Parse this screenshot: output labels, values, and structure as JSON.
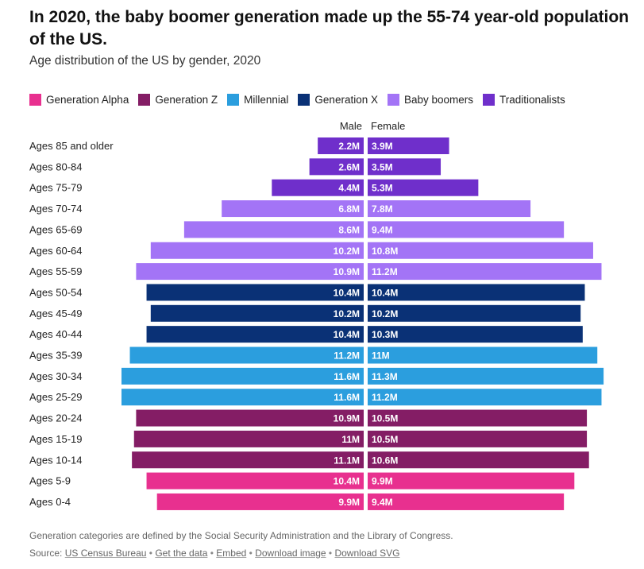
{
  "title": "In 2020, the baby boomer generation made up the 55-74 year-old population of the US.",
  "subtitle": "Age distribution of the US by gender, 2020",
  "legend": [
    {
      "label": "Generation Alpha",
      "color": "#e8308f"
    },
    {
      "label": "Generation Z",
      "color": "#841d65"
    },
    {
      "label": "Millennial",
      "color": "#2b9ede"
    },
    {
      "label": "Generation X",
      "color": "#0a3176"
    },
    {
      "label": "Baby boomers",
      "color": "#a374f6"
    },
    {
      "label": "Traditionalists",
      "color": "#6f2fcb"
    }
  ],
  "footnote": "Generation categories are defined by the Social Security Administration and the Library of Congress.",
  "source": {
    "prefix": "Source:",
    "links": [
      "US Census Bureau",
      "Get the data",
      "Embed",
      "Download image",
      "Download SVG"
    ]
  },
  "chart_data": {
    "type": "bar",
    "orientation": "horizontal-population-pyramid",
    "title": "In 2020, the baby boomer generation made up the 55-74 year-old population of the US.",
    "subtitle": "Age distribution of the US by gender, 2020",
    "left_label": "Male",
    "right_label": "Female",
    "unit_suffix": "M",
    "categories": [
      "Ages 85 and older",
      "Ages 80-84",
      "Ages 75-79",
      "Ages 70-74",
      "Ages 65-69",
      "Ages 60-64",
      "Ages 55-59",
      "Ages 50-54",
      "Ages 45-49",
      "Ages 40-44",
      "Ages 35-39",
      "Ages 30-34",
      "Ages 25-29",
      "Ages 20-24",
      "Ages 15-19",
      "Ages 10-14",
      "Ages 5-9",
      "Ages 0-4"
    ],
    "generation": [
      "Traditionalists",
      "Traditionalists",
      "Traditionalists",
      "Baby boomers",
      "Baby boomers",
      "Baby boomers",
      "Baby boomers",
      "Generation X",
      "Generation X",
      "Generation X",
      "Millennial",
      "Millennial",
      "Millennial",
      "Generation Z",
      "Generation Z",
      "Generation Z",
      "Generation Alpha",
      "Generation Alpha"
    ],
    "series": [
      {
        "name": "Male",
        "values": [
          2.2,
          2.6,
          4.4,
          6.8,
          8.6,
          10.2,
          10.9,
          10.4,
          10.2,
          10.4,
          11.2,
          11.6,
          11.6,
          10.9,
          11,
          11.1,
          10.4,
          9.9
        ]
      },
      {
        "name": "Female",
        "values": [
          3.9,
          3.5,
          5.3,
          7.8,
          9.4,
          10.8,
          11.2,
          10.4,
          10.2,
          10.3,
          11,
          11.3,
          11.2,
          10.5,
          10.5,
          10.6,
          9.9,
          9.4
        ]
      }
    ],
    "xlim": [
      0,
      11.6
    ]
  }
}
